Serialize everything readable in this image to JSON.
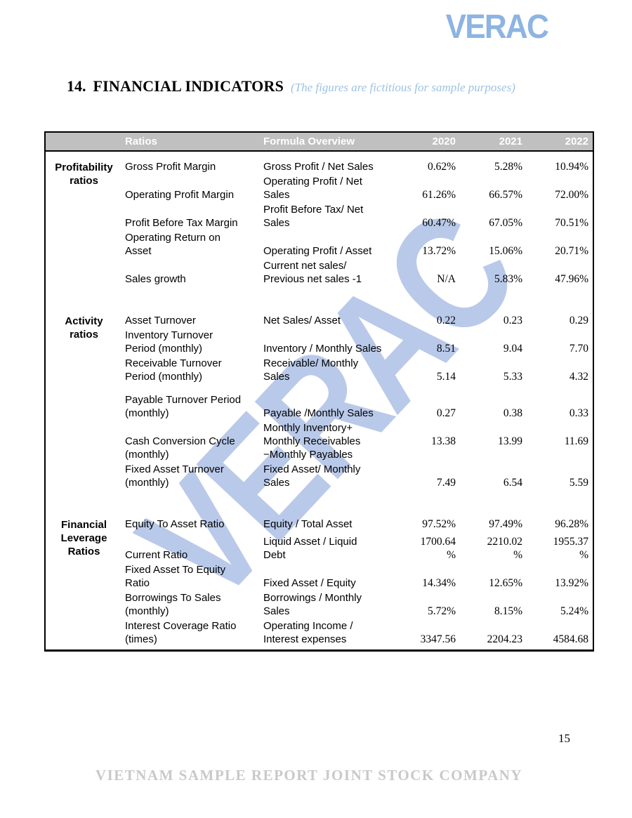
{
  "page": {
    "logo_text": "VERAC",
    "heading": {
      "number": "14.",
      "title": "FINANCIAL INDICATORS",
      "note": "(The figures are fictitious for sample purposes)"
    },
    "watermark_text": "VERAC"
  },
  "table": {
    "headers": {
      "ratios": "Ratios",
      "formula": "Formula Overview",
      "y2020": "2020",
      "y2021": "2021",
      "y2022": "2022"
    },
    "groups": [
      {
        "label": "Profitability\nratios",
        "rows": [
          {
            "name": "Gross Profit Margin",
            "formula": "Gross Profit / Net Sales",
            "v2020": "0.62%",
            "v2021": "5.28%",
            "v2022": "10.94%"
          },
          {
            "name": "Operating Profit Margin",
            "formula": "Operating Profit / Net\nSales",
            "v2020": "61.26%",
            "v2021": "66.57%",
            "v2022": "72.00%"
          },
          {
            "name": "Profit Before Tax Margin",
            "formula": "Profit Before Tax/ Net\nSales",
            "v2020": "60.47%",
            "v2021": "67.05%",
            "v2022": "70.51%"
          },
          {
            "name": "Operating Return on\nAsset",
            "formula": "Operating Profit / Asset",
            "v2020": "13.72%",
            "v2021": "15.06%",
            "v2022": "20.71%"
          },
          {
            "name": "Sales growth",
            "formula": "Current net sales/\nPrevious net sales -1",
            "v2020": "N/A",
            "v2021": "5.83%",
            "v2022": "47.96%"
          }
        ]
      },
      {
        "label": "Activity\nratios",
        "rows": [
          {
            "name": "Asset Turnover",
            "formula": "Net Sales/ Asset",
            "v2020": "0.22",
            "v2021": "0.23",
            "v2022": "0.29"
          },
          {
            "name": "Inventory Turnover\nPeriod (monthly)",
            "formula": "Inventory / Monthly Sales",
            "v2020": "8.51",
            "v2021": "9.04",
            "v2022": "7.70"
          },
          {
            "name": "Receivable Turnover\nPeriod (monthly)",
            "formula": "Receivable/ Monthly\nSales",
            "v2020": "5.14",
            "v2021": "5.33",
            "v2022": "4.32"
          },
          {
            "name": "Payable Turnover Period\n(monthly)",
            "formula": "Payable /Monthly Sales",
            "v2020": "0.27",
            "v2021": "0.38",
            "v2022": "0.33"
          },
          {
            "name": "Cash Conversion Cycle\n(monthly)",
            "formula": "Monthly Inventory+\nMonthly Receivables\n−Monthly Payables",
            "v2020": "13.38",
            "v2021": "13.99",
            "v2022": "11.69"
          },
          {
            "name": "Fixed Asset Turnover\n(monthly)",
            "formula": "Fixed Asset/ Monthly\nSales",
            "v2020": "7.49",
            "v2021": "6.54",
            "v2022": "5.59"
          }
        ]
      },
      {
        "label": "Financial\nLeverage\nRatios",
        "rows": [
          {
            "name": "Equity To Asset Ratio",
            "formula": "Equity / Total Asset",
            "v2020": "97.52%",
            "v2021": "97.49%",
            "v2022": "96.28%"
          },
          {
            "name": "Current Ratio",
            "formula": "Liquid Asset / Liquid\nDebt",
            "v2020": "1700.64\n%",
            "v2021": "2210.02\n%",
            "v2022": "1955.37\n%"
          },
          {
            "name": "Fixed Asset To Equity\nRatio",
            "formula": "Fixed Asset / Equity",
            "v2020": "14.34%",
            "v2021": "12.65%",
            "v2022": "13.92%"
          },
          {
            "name": "Borrowings To Sales\n(monthly)",
            "formula": "Borrowings / Monthly\nSales",
            "v2020": "5.72%",
            "v2021": "8.15%",
            "v2022": "5.24%"
          },
          {
            "name": "Interest Coverage Ratio\n(times)",
            "formula": "Operating Income /\nInterest expenses",
            "v2020": "3347.56",
            "v2021": "2204.23",
            "v2022": "4584.68"
          }
        ]
      }
    ]
  },
  "footer": {
    "page_number": "15",
    "company_name": "VIETNAM SAMPLE REPORT JOINT STOCK COMPANY"
  },
  "colors": {
    "logo_blue": "#8db4e2",
    "note_blue": "#9cc2e5",
    "watermark_blue": "#b9c9e9",
    "header_bg": "#c0c0c0",
    "header_text": "#ffffff",
    "footer_gray": "#c9c9c9"
  }
}
